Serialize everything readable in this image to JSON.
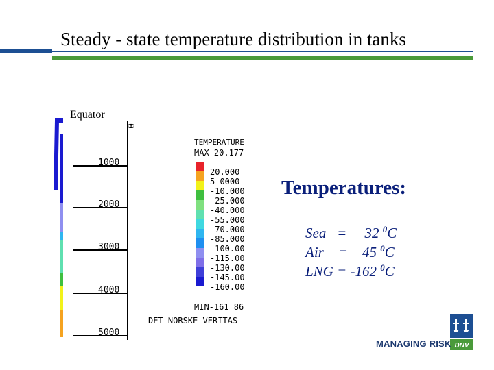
{
  "title": "Steady - state temperature distribution in tanks",
  "equator_label": "Equator",
  "legend": {
    "heading": "TEMPERATURE",
    "max_label": "MAX 20.177",
    "min_label": "MIN-161 86",
    "levels": [
      {
        "label": "20.000",
        "color": "#e8232a"
      },
      {
        "label": "5 0000",
        "color": "#f5a320"
      },
      {
        "label": "-10.000",
        "color": "#f2f21a"
      },
      {
        "label": "-25.000",
        "color": "#3fbf3f"
      },
      {
        "label": "-40.000",
        "color": "#7fe07f"
      },
      {
        "label": "-55.000",
        "color": "#5fe0b0"
      },
      {
        "label": "-70.000",
        "color": "#3fd8e0"
      },
      {
        "label": "-85.000",
        "color": "#2fb6f0"
      },
      {
        "label": "-100.00",
        "color": "#1f8ff0"
      },
      {
        "label": "-115.00",
        "color": "#8f8ff0"
      },
      {
        "label": "-130.00",
        "color": "#7f6fe8"
      },
      {
        "label": "-145.00",
        "color": "#3f3fd8"
      },
      {
        "label": "-160.00",
        "color": "#1a1ad0"
      }
    ]
  },
  "axis_ticks": [
    "0",
    "1000",
    "2000",
    "3000",
    "4000",
    "5000"
  ],
  "credit": "DET NORSKE VERITAS",
  "temperatures": {
    "heading": "Temperatures:",
    "sea": {
      "name": "Sea",
      "sep": "=",
      "value": "32",
      "unit_sup": "0",
      "unit": "C"
    },
    "air": {
      "name": "Air",
      "sep": "=",
      "value": "45",
      "unit_sup": "0",
      "unit": "C"
    },
    "lng": {
      "name": "LNG",
      "sep": "=",
      "value": "-162",
      "unit_sup": "0",
      "unit": "C"
    }
  },
  "footer": {
    "tagline": "MANAGING RISK",
    "logo_text": "DNV"
  }
}
